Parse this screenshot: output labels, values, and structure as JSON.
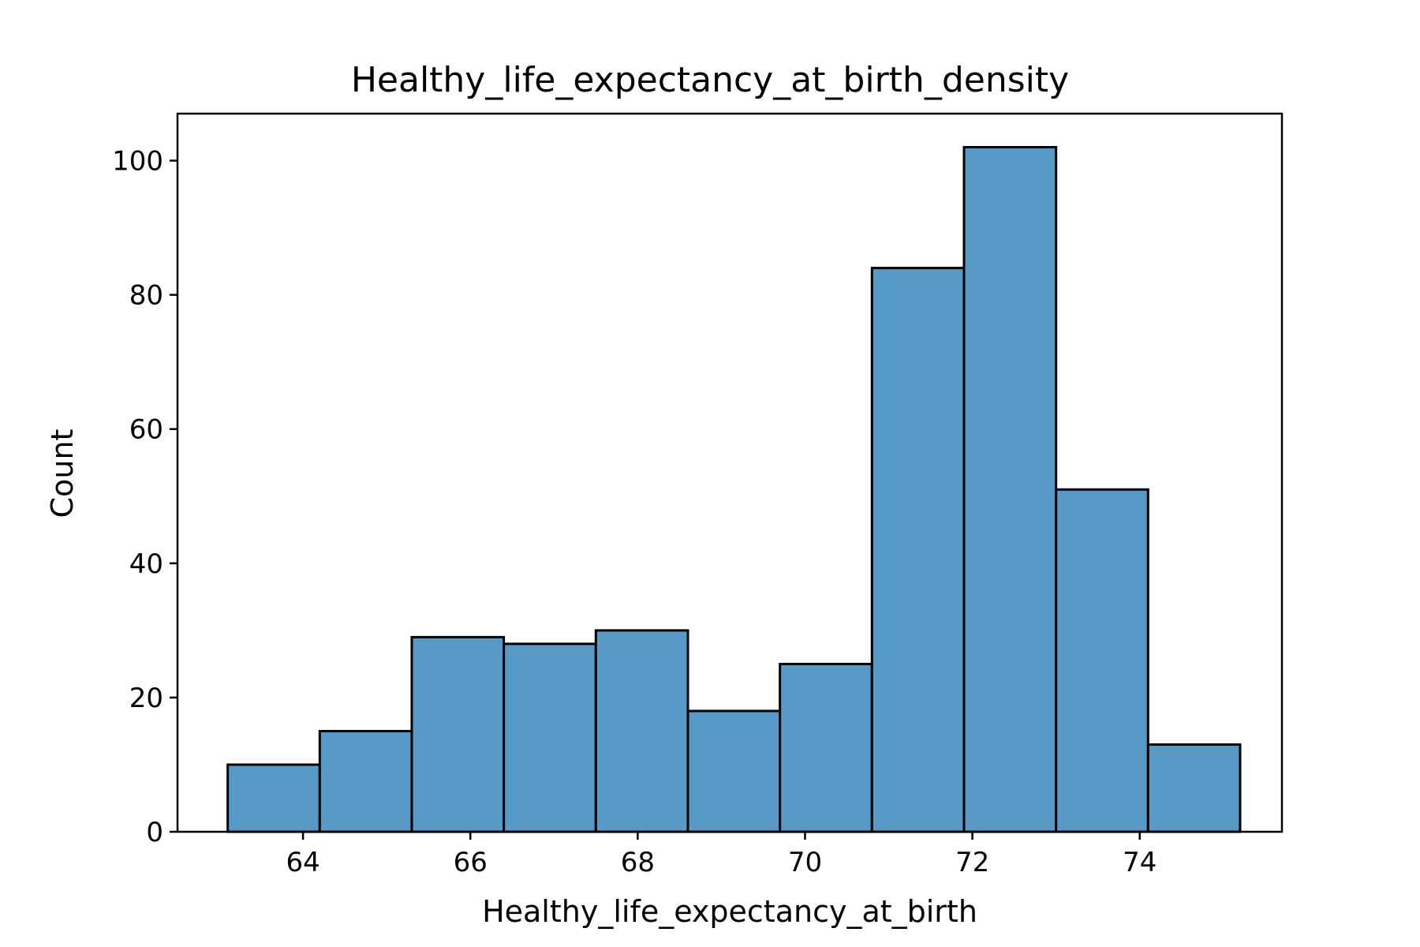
{
  "chart_data": {
    "type": "bar",
    "title": "Healthy_life_expectancy_at_birth_density",
    "xlabel": "Healthy_life_expectancy_at_birth",
    "ylabel": "Count",
    "bin_edges": [
      63.1,
      64.2,
      65.3,
      66.4,
      67.5,
      68.6,
      69.7,
      70.8,
      71.9,
      73.0,
      74.1
    ],
    "counts": [
      10,
      15,
      29,
      28,
      30,
      18,
      25,
      84,
      102,
      51,
      13
    ],
    "bar_width": 1.1,
    "xlim": [
      62.5,
      75.7
    ],
    "ylim": [
      0,
      107
    ],
    "xticks": [
      64,
      66,
      68,
      70,
      72,
      74
    ],
    "yticks": [
      0,
      20,
      40,
      60,
      80,
      100
    ],
    "bar_color": "#5799c7",
    "edge_color": "#000000",
    "grid": false,
    "legend": "none"
  }
}
